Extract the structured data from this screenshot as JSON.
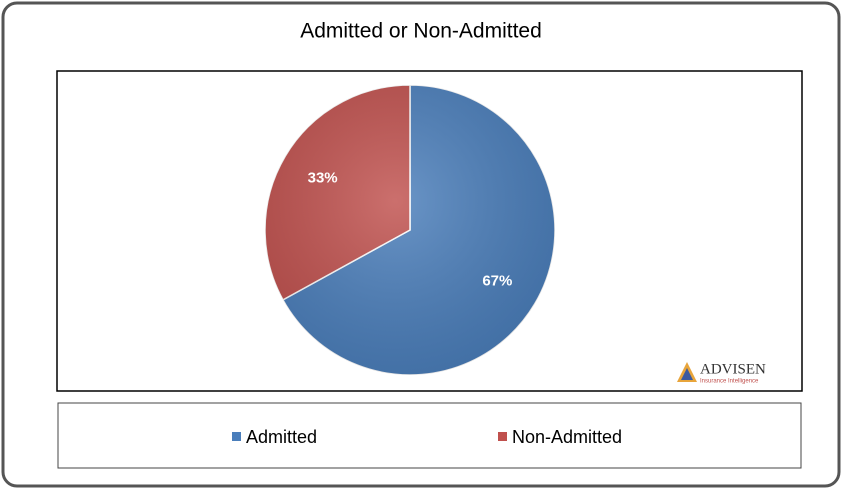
{
  "chart_data": {
    "type": "pie",
    "title": "Admitted or Non-Admitted",
    "categories": [
      "Admitted",
      "Non-Admitted"
    ],
    "values": [
      67,
      33
    ],
    "value_labels": [
      "67%",
      "33%"
    ],
    "colors": [
      "#4a7ebb",
      "#c0504d"
    ],
    "legend": "bottom",
    "logo": {
      "name": "ADVISEN",
      "tagline": "Insurance Intelligence"
    }
  }
}
